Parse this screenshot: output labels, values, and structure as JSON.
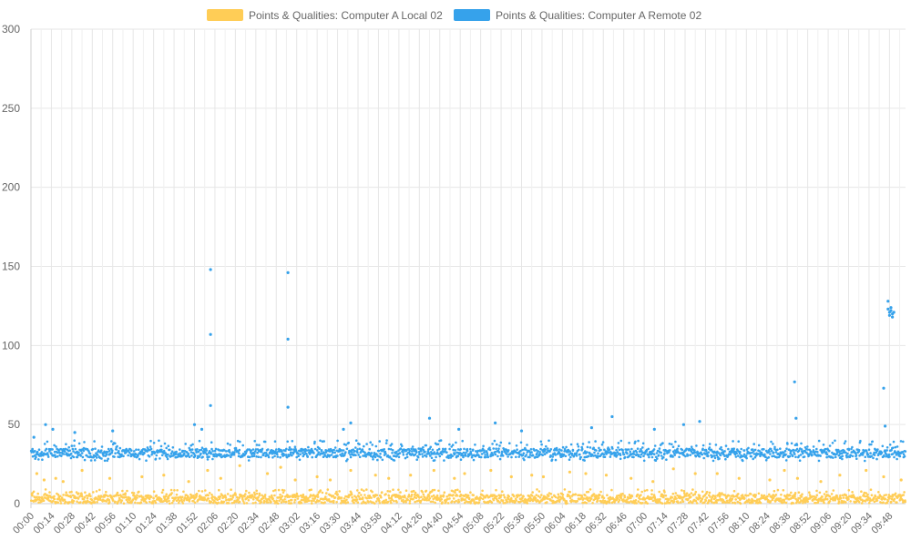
{
  "chart_data": {
    "type": "scatter",
    "title": "",
    "xlabel": "",
    "ylabel": "",
    "ylim": [
      0,
      300
    ],
    "y_ticks": [
      0,
      50,
      100,
      150,
      200,
      250,
      300
    ],
    "x_ticks": [
      "00:00",
      "00:14",
      "00:28",
      "00:42",
      "00:56",
      "01:10",
      "01:24",
      "01:38",
      "01:52",
      "02:06",
      "02:20",
      "02:34",
      "02:48",
      "03:02",
      "03:16",
      "03:30",
      "03:44",
      "03:58",
      "04:12",
      "04:26",
      "04:40",
      "04:54",
      "05:08",
      "05:22",
      "05:36",
      "05:50",
      "06:04",
      "06:18",
      "06:32",
      "06:46",
      "07:00",
      "07:14",
      "07:28",
      "07:42",
      "07:56",
      "08:10",
      "08:24",
      "08:38",
      "08:52",
      "09:06",
      "09:20",
      "09:34",
      "09:48"
    ],
    "x_range_minutes": [
      0,
      599
    ],
    "grid": true,
    "legend_position": "top",
    "series": [
      {
        "name": "Points & Qualities: Computer A Local 02",
        "color": "#ffcd56",
        "typical_range": [
          0,
          9
        ],
        "baseline": 3,
        "outliers": [
          [
            4,
            19
          ],
          [
            9,
            15
          ],
          [
            17,
            16
          ],
          [
            22,
            14
          ],
          [
            35,
            21
          ],
          [
            54,
            16
          ],
          [
            76,
            17
          ],
          [
            91,
            18
          ],
          [
            108,
            14
          ],
          [
            121,
            21
          ],
          [
            130,
            16
          ],
          [
            143,
            24
          ],
          [
            162,
            19
          ],
          [
            171,
            23
          ],
          [
            181,
            15
          ],
          [
            196,
            17
          ],
          [
            205,
            15
          ],
          [
            219,
            21
          ],
          [
            236,
            18
          ],
          [
            245,
            16
          ],
          [
            260,
            18
          ],
          [
            276,
            21
          ],
          [
            290,
            16
          ],
          [
            297,
            19
          ],
          [
            315,
            21
          ],
          [
            329,
            17
          ],
          [
            343,
            18
          ],
          [
            351,
            17
          ],
          [
            369,
            20
          ],
          [
            380,
            19
          ],
          [
            394,
            18
          ],
          [
            411,
            16
          ],
          [
            426,
            14
          ],
          [
            440,
            22
          ],
          [
            455,
            19
          ],
          [
            470,
            19
          ],
          [
            485,
            16
          ],
          [
            506,
            15
          ],
          [
            516,
            21
          ],
          [
            525,
            16
          ],
          [
            541,
            14
          ],
          [
            554,
            18
          ],
          [
            572,
            21
          ],
          [
            584,
            17
          ],
          [
            596,
            15
          ]
        ]
      },
      {
        "name": "Points & Qualities: Computer A Remote 02",
        "color": "#36a2eb",
        "typical_range": [
          27,
          40
        ],
        "baseline": 32,
        "outliers": [
          [
            2,
            42
          ],
          [
            10,
            50
          ],
          [
            15,
            47
          ],
          [
            30,
            45
          ],
          [
            56,
            46
          ],
          [
            112,
            50
          ],
          [
            117,
            47
          ],
          [
            123,
            148
          ],
          [
            123,
            107
          ],
          [
            123,
            62
          ],
          [
            176,
            146
          ],
          [
            176,
            104
          ],
          [
            176,
            61
          ],
          [
            214,
            47
          ],
          [
            219,
            51
          ],
          [
            273,
            54
          ],
          [
            293,
            47
          ],
          [
            318,
            51
          ],
          [
            336,
            46
          ],
          [
            384,
            48
          ],
          [
            398,
            55
          ],
          [
            427,
            47
          ],
          [
            447,
            50
          ],
          [
            458,
            52
          ],
          [
            523,
            77
          ],
          [
            524,
            54
          ],
          [
            584,
            73
          ],
          [
            585,
            49
          ],
          [
            587,
            128
          ],
          [
            587,
            123
          ],
          [
            588,
            121
          ],
          [
            588,
            119
          ],
          [
            589,
            122
          ],
          [
            590,
            120
          ],
          [
            589,
            124
          ],
          [
            590,
            118
          ],
          [
            591,
            121
          ]
        ]
      }
    ]
  }
}
